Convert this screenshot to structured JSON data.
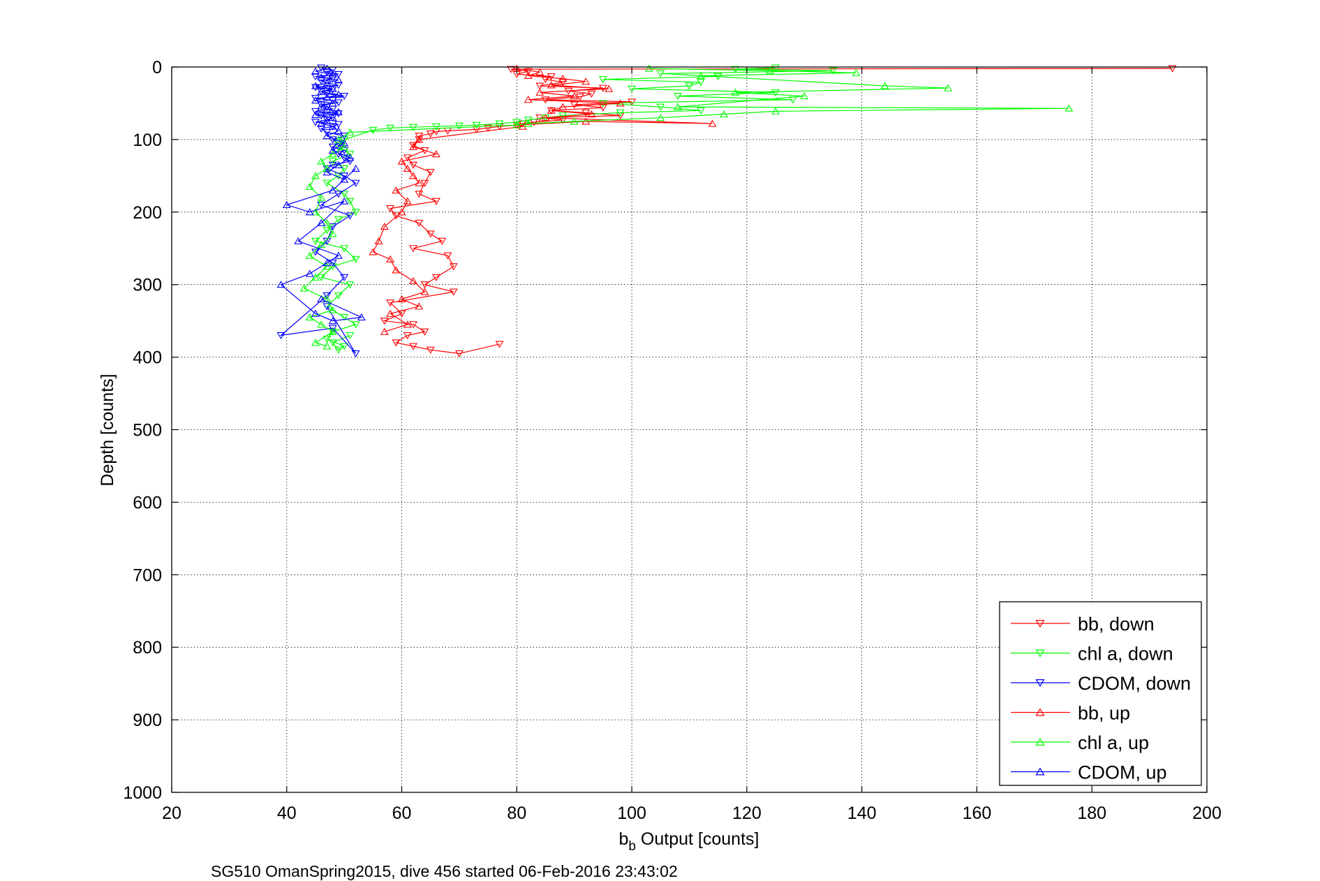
{
  "chart_data": {
    "type": "line",
    "xlabel_main": "b",
    "xlabel_sub": "b",
    "xlabel_rest": " Output [counts]",
    "ylabel": "Depth [counts]",
    "caption": "SG510 OmanSpring2015, dive 456 started 06-Feb-2016 23:43:02",
    "xlim": [
      20,
      200
    ],
    "ylim": [
      0,
      1000
    ],
    "y_reversed": true,
    "grid": true,
    "legend_position": "bottom-right",
    "xticks": [
      "20",
      "40",
      "60",
      "80",
      "100",
      "120",
      "140",
      "160",
      "180",
      "200"
    ],
    "yticks": [
      "0",
      "100",
      "200",
      "300",
      "400",
      "500",
      "600",
      "700",
      "800",
      "900",
      "1000"
    ],
    "series": [
      {
        "name": "bb, down",
        "color": "#ff0000",
        "marker": "triangle-down",
        "x": [
          194,
          79,
          82,
          80,
          86,
          85,
          88,
          84,
          95,
          89,
          93,
          91,
          85,
          100,
          90,
          95,
          86,
          92,
          98,
          84,
          88,
          83,
          81,
          80,
          77,
          75,
          73,
          68,
          66,
          65,
          63,
          63,
          62,
          64,
          61,
          62,
          65,
          64,
          63,
          66,
          58,
          59,
          63,
          65,
          67,
          62,
          68,
          69,
          66,
          64,
          69,
          58,
          60,
          57,
          62,
          64,
          61,
          59,
          62,
          65,
          70,
          77
        ],
        "y": [
          2,
          3,
          6,
          10,
          13,
          17,
          21,
          26,
          29,
          33,
          37,
          41,
          45,
          48,
          52,
          56,
          60,
          63,
          67,
          70,
          73,
          76,
          78,
          80,
          82,
          84,
          86,
          88,
          89,
          92,
          95,
          100,
          108,
          115,
          125,
          135,
          145,
          160,
          175,
          185,
          195,
          205,
          215,
          230,
          240,
          250,
          260,
          275,
          290,
          300,
          310,
          325,
          340,
          350,
          355,
          365,
          370,
          380,
          385,
          390,
          395,
          382
        ]
      },
      {
        "name": "chl a, down",
        "color": "#00ff00",
        "marker": "triangle-down",
        "x": [
          125,
          118,
          135,
          105,
          115,
          95,
          112,
          110,
          100,
          125,
          108,
          128,
          95,
          105,
          112,
          98,
          88,
          85,
          82,
          80,
          77,
          73,
          70,
          66,
          62,
          58,
          55,
          50,
          49,
          51,
          48,
          50,
          49,
          47,
          50,
          51,
          52,
          49,
          47,
          45,
          50,
          52,
          48,
          46,
          51,
          49,
          47,
          50,
          52,
          48,
          47,
          50,
          49,
          48,
          51
        ],
        "y": [
          1,
          3,
          5,
          9,
          13,
          17,
          21,
          26,
          30,
          35,
          40,
          45,
          50,
          55,
          60,
          63,
          67,
          70,
          73,
          76,
          78,
          80,
          81,
          82,
          83,
          84,
          87,
          100,
          110,
          120,
          130,
          140,
          150,
          160,
          175,
          185,
          200,
          210,
          225,
          240,
          250,
          265,
          275,
          290,
          300,
          315,
          330,
          345,
          355,
          365,
          375,
          385,
          390,
          380,
          370
        ]
      },
      {
        "name": "CDOM, down",
        "color": "#0000ff",
        "marker": "triangle-down",
        "x": [
          46,
          48,
          47,
          49,
          45,
          48,
          46,
          47,
          49,
          45,
          48,
          46,
          47,
          50,
          45,
          48,
          49,
          46,
          47,
          48,
          45,
          49,
          46,
          48,
          47,
          45,
          49,
          48,
          46,
          47,
          50,
          48,
          49,
          48,
          50,
          49,
          50,
          51,
          48,
          47,
          50,
          52,
          49,
          46,
          51,
          48,
          47,
          45,
          48,
          50,
          47,
          39,
          48,
          52,
          47
        ],
        "y": [
          1,
          4,
          7,
          10,
          13,
          16,
          19,
          22,
          25,
          28,
          31,
          34,
          37,
          40,
          43,
          46,
          49,
          52,
          55,
          58,
          61,
          64,
          67,
          70,
          73,
          76,
          79,
          82,
          85,
          90,
          95,
          100,
          105,
          110,
          115,
          120,
          125,
          130,
          135,
          140,
          150,
          160,
          175,
          190,
          205,
          220,
          240,
          255,
          270,
          290,
          315,
          370,
          360,
          395,
          330
        ]
      },
      {
        "name": "bb, up",
        "color": "#ff0000",
        "marker": "triangle-up",
        "x": [
          80,
          84,
          82,
          88,
          92,
          86,
          96,
          84,
          90,
          82,
          98,
          88,
          86,
          93,
          85,
          114,
          92,
          80,
          81,
          63,
          62,
          66,
          60,
          61,
          62,
          63,
          59,
          61,
          60,
          57,
          56,
          55,
          58,
          59,
          62,
          64,
          60,
          63,
          58,
          61,
          57
        ],
        "y": [
          2,
          7,
          12,
          16,
          20,
          25,
          30,
          35,
          40,
          45,
          50,
          55,
          60,
          65,
          70,
          78,
          75,
          80,
          82,
          100,
          110,
          120,
          130,
          140,
          150,
          160,
          170,
          185,
          200,
          220,
          240,
          255,
          265,
          280,
          295,
          310,
          320,
          330,
          340,
          355,
          365
        ]
      },
      {
        "name": "chl a, up",
        "color": "#00ff00",
        "marker": "triangle-up",
        "x": [
          103,
          124,
          139,
          112,
          144,
          155,
          118,
          130,
          108,
          176,
          125,
          116,
          105,
          90,
          82,
          80,
          51,
          49,
          50,
          48,
          46,
          47,
          45,
          44,
          46,
          45,
          47,
          48,
          46,
          44,
          47,
          45,
          43,
          47,
          48,
          44,
          46,
          48,
          45,
          47
        ],
        "y": [
          2,
          5,
          8,
          12,
          26,
          29,
          35,
          40,
          55,
          57,
          61,
          65,
          70,
          75,
          78,
          80,
          90,
          100,
          110,
          120,
          130,
          140,
          150,
          165,
          180,
          200,
          215,
          230,
          245,
          260,
          275,
          290,
          305,
          320,
          335,
          345,
          355,
          365,
          380,
          385
        ]
      },
      {
        "name": "CDOM, up",
        "color": "#0000ff",
        "marker": "triangle-up",
        "x": [
          47,
          45,
          48,
          46,
          49,
          47,
          45,
          48,
          46,
          49,
          47,
          45,
          48,
          46,
          47,
          49,
          45,
          48,
          47,
          46,
          48,
          49,
          47,
          50,
          48,
          51,
          49,
          47,
          50,
          52,
          48,
          40,
          44,
          50,
          46,
          42,
          49,
          47,
          44,
          39,
          45,
          48,
          53,
          46
        ],
        "y": [
          2,
          6,
          10,
          14,
          18,
          22,
          26,
          30,
          34,
          38,
          42,
          46,
          50,
          54,
          58,
          62,
          66,
          70,
          74,
          78,
          82,
          88,
          95,
          105,
          115,
          125,
          135,
          145,
          155,
          140,
          170,
          190,
          200,
          185,
          215,
          240,
          260,
          270,
          285,
          300,
          340,
          350,
          345,
          320
        ]
      }
    ]
  }
}
